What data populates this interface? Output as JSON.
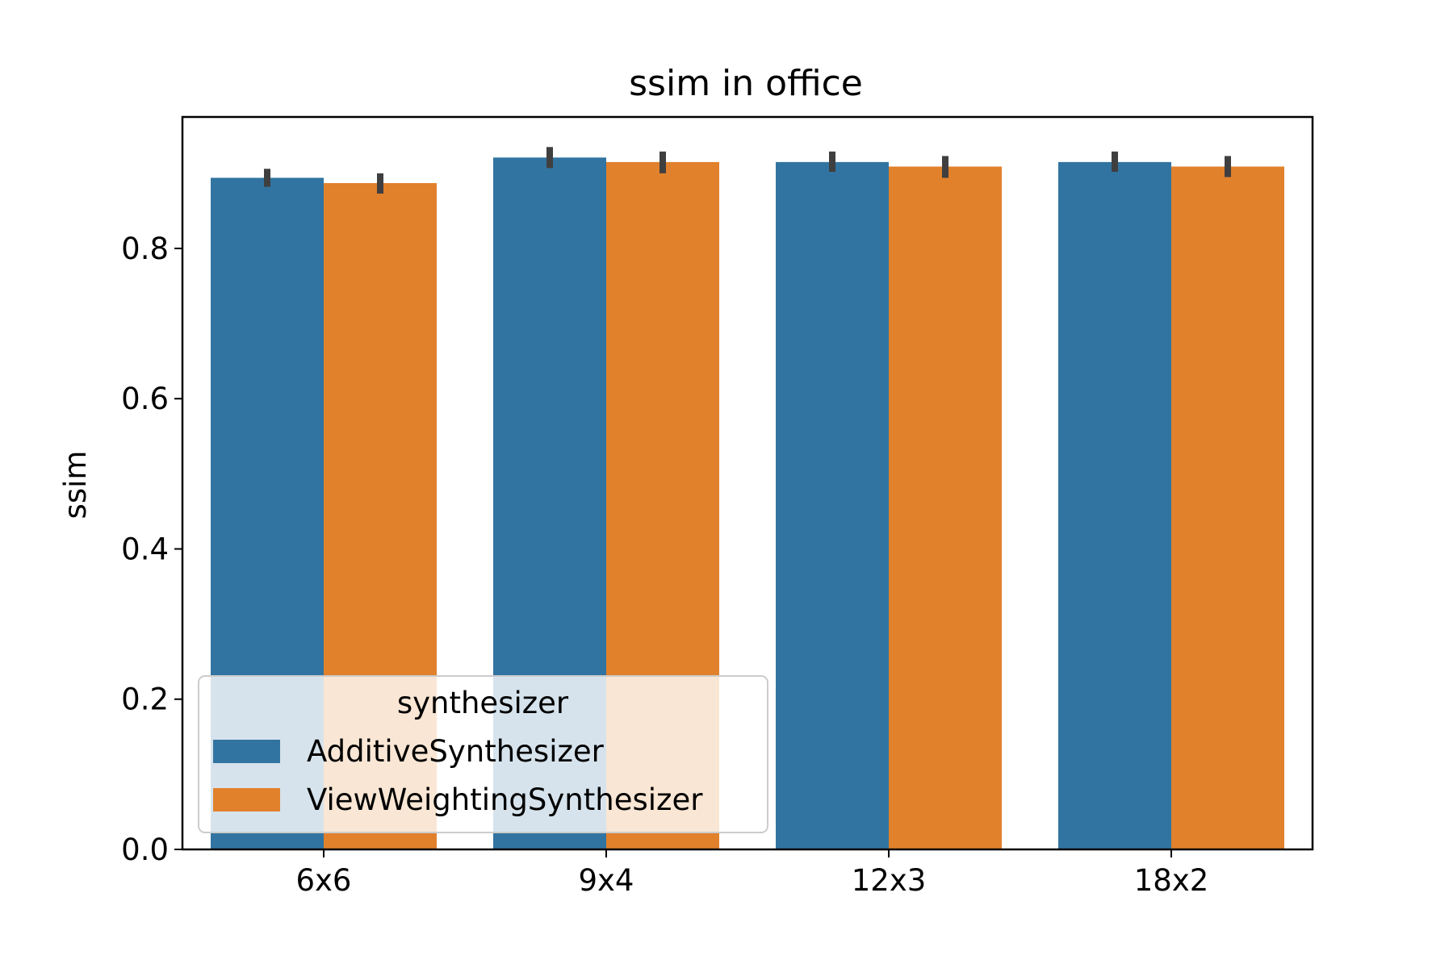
{
  "chart_data": {
    "type": "bar",
    "title": "ssim in office",
    "xlabel": "",
    "ylabel": "ssim",
    "categories": [
      "6x6",
      "9x4",
      "12x3",
      "18x2"
    ],
    "ylim": [
      0,
      0.975
    ],
    "yticks": [
      0.0,
      0.2,
      0.4,
      0.6,
      0.8
    ],
    "ytick_labels": [
      "0.0",
      "0.2",
      "0.4",
      "0.6",
      "0.8"
    ],
    "series": [
      {
        "name": "AdditiveSynthesizer",
        "color": "#3274a1",
        "values": [
          0.894,
          0.921,
          0.915,
          0.915
        ],
        "err_low": [
          0.882,
          0.907,
          0.902,
          0.902
        ],
        "err_high": [
          0.906,
          0.935,
          0.929,
          0.929
        ]
      },
      {
        "name": "ViewWeightingSynthesizer",
        "color": "#e1812c",
        "values": [
          0.887,
          0.915,
          0.909,
          0.909
        ],
        "err_low": [
          0.873,
          0.9,
          0.894,
          0.895
        ],
        "err_high": [
          0.9,
          0.929,
          0.923,
          0.923
        ]
      }
    ],
    "legend": {
      "title": "synthesizer",
      "placement": "lower-left"
    },
    "grid": false,
    "error_bar_color": "#3f3f3f"
  }
}
